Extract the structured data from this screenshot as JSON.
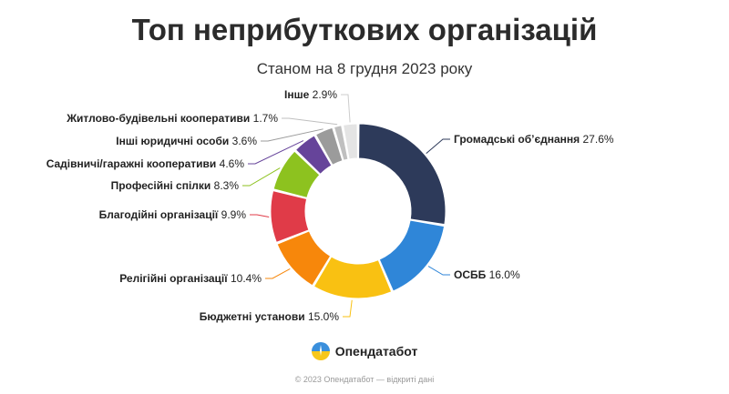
{
  "header": {
    "title": "Топ неприбуткових організацій",
    "subtitle": "Станом на 8 грудня 2023 року"
  },
  "brand": {
    "name": "Опендатабот"
  },
  "footer": {
    "text": "© 2023 Опендатабот — відкриті дані"
  },
  "chart_data": {
    "type": "pie",
    "variant": "donut",
    "title": "Топ неприбуткових організацій",
    "subtitle": "Станом на 8 грудня 2023 року",
    "unit": "%",
    "categories": [
      "Громадські об’єднання",
      "ОСББ",
      "Бюджетні установи",
      "Релігійні організації",
      "Благодійні організації",
      "Професійні спілки",
      "Садівничі/гаражні кооперативи",
      "Інші юридичні особи",
      "Житлово-будівельні кооперативи",
      "Інше"
    ],
    "values": [
      27.6,
      16.0,
      15.0,
      10.4,
      9.9,
      8.3,
      4.6,
      3.6,
      1.7,
      2.9
    ],
    "value_labels": [
      "27.6%",
      "16.0%",
      "15.0%",
      "10.4%",
      "9.9%",
      "8.3%",
      "4.6%",
      "3.6%",
      "1.7%",
      "2.9%"
    ],
    "colors": [
      "#2d3a5a",
      "#2f86d8",
      "#f9c112",
      "#f7870b",
      "#e03b48",
      "#8dc21f",
      "#66449a",
      "#9b9b9b",
      "#bfbfbf",
      "#e4e4e4"
    ],
    "legend": "none"
  }
}
